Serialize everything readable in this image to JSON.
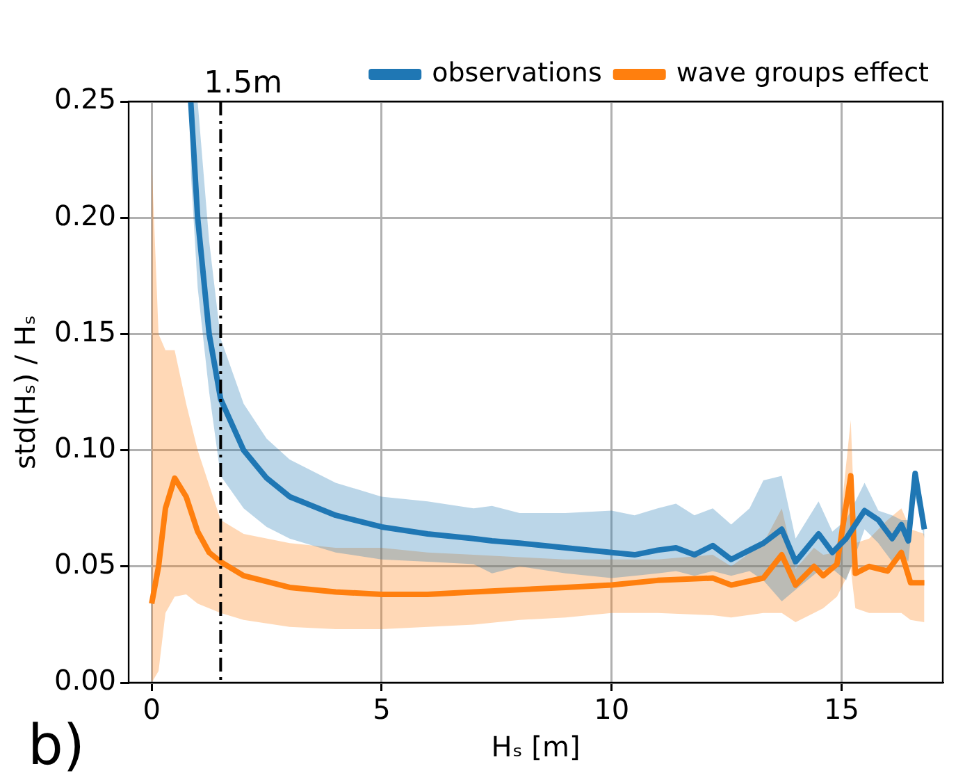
{
  "chart_data": {
    "type": "line",
    "xlabel": "Hₛ [m]",
    "ylabel": "std(Hₛ) / Hₛ",
    "xlim": [
      -0.5,
      17.2
    ],
    "xticks": [
      0,
      5,
      10,
      15
    ],
    "ylim": [
      0,
      0.25
    ],
    "yticks": [
      {
        "value": 0,
        "label": "0.00"
      },
      {
        "value": 0.05,
        "label": "0.05"
      },
      {
        "value": 0.1,
        "label": "0.10"
      },
      {
        "value": 0.15,
        "label": "0.15"
      },
      {
        "value": 0.2,
        "label": "0.20"
      },
      {
        "value": 0.25,
        "label": "0.25"
      }
    ],
    "grid": true,
    "legend": "top right",
    "marker": "none",
    "line_style": "solid",
    "ref_lines": [
      {
        "axis": "x",
        "value": 1.5,
        "label": "1.5m",
        "color": "#000000",
        "line_style": "dashdot"
      }
    ],
    "annotations": [
      "b)"
    ],
    "series": [
      {
        "name": "observations",
        "color": "#1f77b4",
        "x": [
          0.85,
          1,
          1.25,
          1.5,
          2,
          2.5,
          3,
          4,
          5,
          6,
          7,
          7.4,
          8,
          9,
          10,
          10.5,
          11,
          11.4,
          11.8,
          12.2,
          12.6,
          13,
          13.3,
          13.7,
          14,
          14.5,
          14.8,
          15.1,
          15.5,
          15.8,
          16.1,
          16.3,
          16.45,
          16.6,
          16.8
        ],
        "values": [
          0.25,
          0.2,
          0.15,
          0.122,
          0.1,
          0.088,
          0.08,
          0.072,
          0.067,
          0.064,
          0.062,
          0.061,
          0.06,
          0.058,
          0.056,
          0.055,
          0.057,
          0.058,
          0.055,
          0.059,
          0.053,
          0.057,
          0.06,
          0.066,
          0.052,
          0.064,
          0.056,
          0.062,
          0.074,
          0.07,
          0.062,
          0.068,
          0.061,
          0.09,
          0.066
        ],
        "upper": [
          0.25,
          0.25,
          0.19,
          0.148,
          0.12,
          0.105,
          0.096,
          0.086,
          0.08,
          0.078,
          0.075,
          0.076,
          0.073,
          0.073,
          0.074,
          0.072,
          0.075,
          0.077,
          0.072,
          0.075,
          0.068,
          0.075,
          0.087,
          0.089,
          0.062,
          0.078,
          0.065,
          0.07,
          0.086,
          0.074,
          0.072,
          0.07,
          0.07,
          0.09,
          0.066
        ],
        "lower": [
          0.22,
          0.17,
          0.125,
          0.089,
          0.075,
          0.067,
          0.062,
          0.056,
          0.053,
          0.052,
          0.051,
          0.047,
          0.05,
          0.047,
          0.045,
          0.046,
          0.047,
          0.048,
          0.046,
          0.048,
          0.046,
          0.048,
          0.044,
          0.035,
          0.04,
          0.048,
          0.049,
          0.044,
          0.066,
          0.06,
          0.052,
          0.056,
          0.052,
          0.08,
          0.062
        ]
      },
      {
        "name": "wave groups effect",
        "color": "#ff7f0e",
        "x": [
          0,
          0.15,
          0.3,
          0.5,
          0.75,
          1,
          1.25,
          1.5,
          2,
          3,
          4,
          5,
          6,
          7,
          8,
          9,
          10,
          11,
          12.2,
          12.6,
          13.3,
          13.7,
          14,
          14.4,
          14.6,
          14.9,
          15.2,
          15.3,
          15.6,
          16,
          16.3,
          16.5,
          16.8
        ],
        "values": [
          0.034,
          0.05,
          0.075,
          0.088,
          0.08,
          0.065,
          0.056,
          0.052,
          0.046,
          0.041,
          0.039,
          0.038,
          0.038,
          0.039,
          0.04,
          0.041,
          0.042,
          0.044,
          0.045,
          0.042,
          0.045,
          0.055,
          0.042,
          0.05,
          0.046,
          0.051,
          0.089,
          0.047,
          0.05,
          0.048,
          0.056,
          0.043,
          0.043
        ],
        "upper": [
          0.225,
          0.15,
          0.143,
          0.143,
          0.12,
          0.1,
          0.085,
          0.07,
          0.064,
          0.06,
          0.058,
          0.058,
          0.056,
          0.055,
          0.054,
          0.053,
          0.053,
          0.053,
          0.055,
          0.05,
          0.06,
          0.075,
          0.049,
          0.058,
          0.055,
          0.056,
          0.113,
          0.06,
          0.062,
          0.07,
          0.075,
          0.066,
          0.064
        ],
        "lower": [
          0,
          0.005,
          0.03,
          0.037,
          0.038,
          0.034,
          0.032,
          0.03,
          0.027,
          0.024,
          0.023,
          0.023,
          0.024,
          0.025,
          0.027,
          0.028,
          0.03,
          0.03,
          0.029,
          0.028,
          0.03,
          0.03,
          0.026,
          0.03,
          0.032,
          0.037,
          0.049,
          0.032,
          0.03,
          0.03,
          0.03,
          0.027,
          0.026
        ]
      }
    ]
  }
}
